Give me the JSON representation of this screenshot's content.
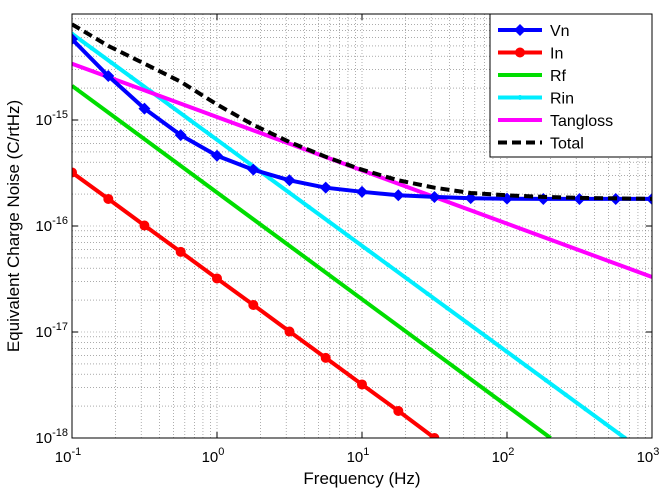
{
  "chart_data": {
    "type": "line",
    "title": "",
    "xlabel": "Frequency (Hz)",
    "ylabel": "Equivalent Charge Noise (C/rtHz)",
    "xscale": "log",
    "yscale": "log",
    "xlim": [
      0.1,
      1000
    ],
    "ylim": [
      1e-18,
      1e-14
    ],
    "grid": "on (major and minor, dotted)",
    "legend_position": "top-right",
    "x_ticks": [
      {
        "base": "10",
        "exp": "-1"
      },
      {
        "base": "10",
        "exp": "0"
      },
      {
        "base": "10",
        "exp": "1"
      },
      {
        "base": "10",
        "exp": "2"
      },
      {
        "base": "10",
        "exp": "3"
      }
    ],
    "y_ticks": [
      {
        "base": "10",
        "exp": "-18"
      },
      {
        "base": "10",
        "exp": "-17"
      },
      {
        "base": "10",
        "exp": "-16"
      },
      {
        "base": "10",
        "exp": "-15"
      }
    ],
    "series": [
      {
        "name": "Vn",
        "color": "#0000ff",
        "marker": "diamond",
        "x": [
          0.1,
          0.178,
          0.316,
          0.562,
          1,
          1.78,
          3.16,
          5.62,
          10,
          17.8,
          31.6,
          56.2,
          100,
          178,
          316,
          562,
          1000
        ],
        "y": [
          5.8e-15,
          2.6e-15,
          1.28e-15,
          7.2e-16,
          4.6e-16,
          3.4e-16,
          2.7e-16,
          2.3e-16,
          2.1e-16,
          1.95e-16,
          1.88e-16,
          1.83e-16,
          1.81e-16,
          1.8e-16,
          1.8e-16,
          1.8e-16,
          1.8e-16
        ]
      },
      {
        "name": "In",
        "color": "#ff0000",
        "marker": "circle",
        "x": [
          0.1,
          0.178,
          0.316,
          0.562,
          1,
          1.78,
          3.16,
          5.62,
          10,
          17.8,
          31.6
        ],
        "y": [
          3.2e-16,
          1.8e-16,
          1.01e-16,
          5.7e-17,
          3.2e-17,
          1.8e-17,
          1.01e-17,
          5.7e-18,
          3.2e-18,
          1.8e-18,
          1e-18
        ]
      },
      {
        "name": "Rf",
        "color": "#00dd00",
        "marker": "none",
        "x": [
          0.1,
          200
        ],
        "y": [
          2.1e-15,
          1e-18
        ]
      },
      {
        "name": "Rin",
        "color": "#00eeff",
        "marker": "point",
        "x": [
          0.1,
          650
        ],
        "y": [
          6.5e-15,
          1e-18
        ]
      },
      {
        "name": "Tangloss",
        "color": "#ff00ff",
        "marker": "none",
        "x": [
          0.1,
          1000
        ],
        "y": [
          3.4e-15,
          3.3e-17
        ]
      },
      {
        "name": "Total",
        "color": "#000000",
        "marker": "none",
        "dashed": true,
        "x": [
          0.1,
          0.178,
          0.316,
          0.562,
          1,
          1.78,
          3.16,
          5.62,
          10,
          17.8,
          31.6,
          56.2,
          100,
          178,
          316,
          562,
          1000
        ],
        "y": [
          8e-15,
          5e-15,
          3.4e-15,
          2.3e-15,
          1.4e-15,
          9e-16,
          6.2e-16,
          4.5e-16,
          3.4e-16,
          2.7e-16,
          2.3e-16,
          2.05e-16,
          1.95e-16,
          1.88e-16,
          1.84e-16,
          1.82e-16,
          1.8e-16
        ]
      }
    ]
  }
}
